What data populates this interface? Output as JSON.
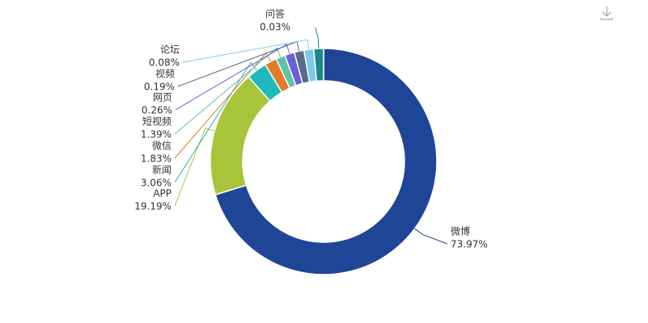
{
  "chart_data": {
    "type": "pie",
    "categories": [
      "微博",
      "APP",
      "新闻",
      "微信",
      "短视频",
      "网页",
      "视频",
      "论坛",
      "问答"
    ],
    "values": [
      73.97,
      19.19,
      3.06,
      1.83,
      1.39,
      0.26,
      0.19,
      0.08,
      0.03
    ],
    "value_labels": [
      "73.97%",
      "19.19%",
      "3.06%",
      "1.83%",
      "1.39%",
      "0.26%",
      "0.19%",
      "0.08%",
      "0.03%"
    ],
    "colors": [
      "#1f4597",
      "#a8c43a",
      "#1fb8bb",
      "#e27a2b",
      "#5fc4a6",
      "#6a5fd8",
      "#5a6b8a",
      "#7cc9ea",
      "#178a8a"
    ]
  }
}
